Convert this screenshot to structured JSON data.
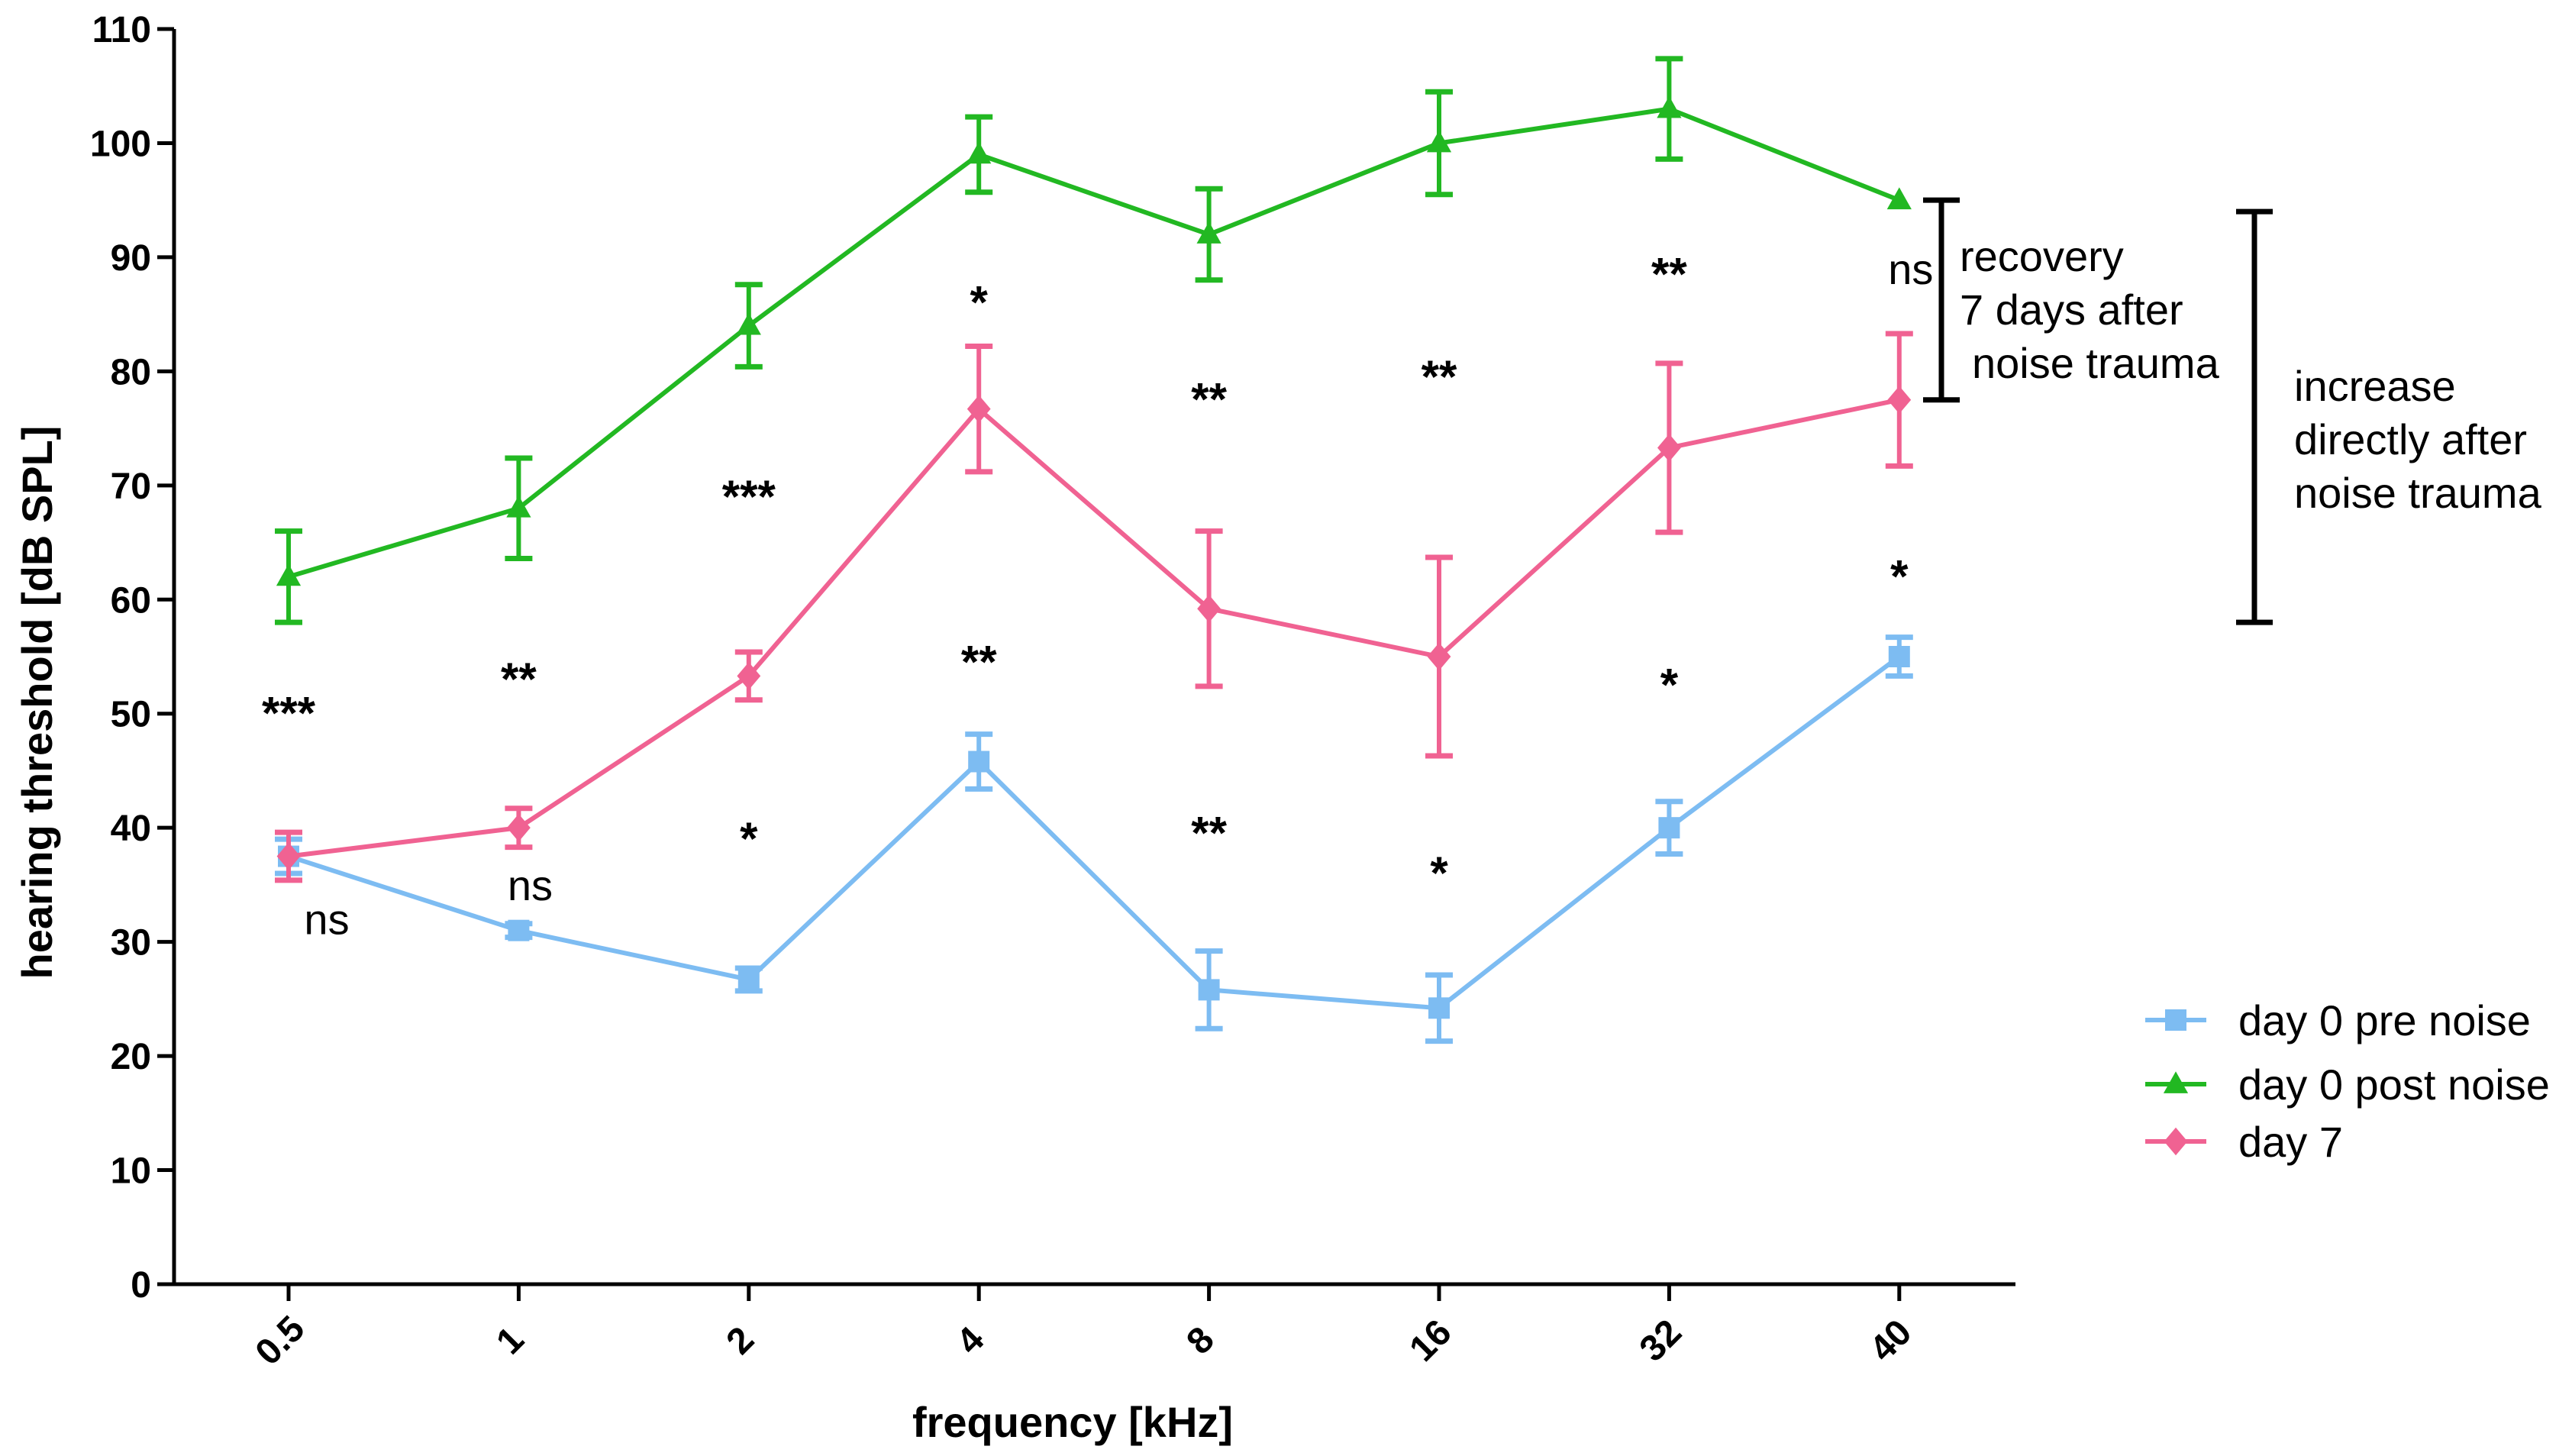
{
  "chart_data": {
    "type": "line",
    "title": "",
    "xlabel": "frequency [kHz]",
    "ylabel": "hearing threshold [dB SPL]",
    "ylim": [
      0,
      110
    ],
    "yticks": [
      0,
      10,
      20,
      30,
      40,
      50,
      60,
      70,
      80,
      90,
      100,
      110
    ],
    "categories": [
      "0.5",
      "1",
      "2",
      "4",
      "8",
      "16",
      "32",
      "40"
    ],
    "series": [
      {
        "name": "day 0 pre noise",
        "marker": "square",
        "color": "#7dbcf2",
        "values": [
          37.5,
          31,
          26.7,
          45.8,
          25.8,
          24.2,
          40,
          55
        ],
        "errors": [
          1.5,
          0.6,
          1.0,
          2.4,
          3.4,
          2.9,
          2.3,
          1.7
        ]
      },
      {
        "name": "day 0 post noise",
        "marker": "triangle",
        "color": "#22b822",
        "values": [
          62,
          68,
          84,
          99,
          92,
          100,
          103,
          95
        ],
        "errors": [
          4.0,
          4.4,
          3.6,
          3.3,
          4.0,
          4.5,
          4.4,
          0
        ]
      },
      {
        "name": "day 7",
        "marker": "diamond",
        "color": "#f06292",
        "values": [
          37.5,
          40,
          53.3,
          76.7,
          59.2,
          55,
          73.3,
          77.5
        ],
        "errors": [
          2.1,
          1.7,
          2.1,
          5.5,
          6.8,
          8.7,
          7.4,
          5.8
        ]
      }
    ],
    "significance": [
      {
        "category": "0.5",
        "y": 50,
        "text": "***"
      },
      {
        "category": "0.5",
        "y": 32,
        "text": "ns"
      },
      {
        "category": "1",
        "y": 53,
        "text": "**"
      },
      {
        "category": "1",
        "y": 35,
        "text": "ns"
      },
      {
        "category": "2",
        "y": 69,
        "text": "***"
      },
      {
        "category": "2",
        "y": 39,
        "text": "*"
      },
      {
        "category": "4",
        "y": 86,
        "text": "*"
      },
      {
        "category": "4",
        "y": 54.5,
        "text": "**"
      },
      {
        "category": "8",
        "y": 77.5,
        "text": "**"
      },
      {
        "category": "8",
        "y": 39.5,
        "text": "**"
      },
      {
        "category": "16",
        "y": 79.5,
        "text": "**"
      },
      {
        "category": "16",
        "y": 36,
        "text": "*"
      },
      {
        "category": "32",
        "y": 88.5,
        "text": "**"
      },
      {
        "category": "32",
        "y": 52.5,
        "text": "*"
      },
      {
        "category": "40",
        "y": 89,
        "text": "ns"
      },
      {
        "category": "40",
        "y": 62,
        "text": "*"
      }
    ],
    "brackets": [
      {
        "from": 77.5,
        "to": 95,
        "label": [
          "recovery",
          "7 days after",
          "noise trauma"
        ]
      },
      {
        "from": 58,
        "to": 94,
        "label": [
          "increase",
          "directly after",
          "noise trauma"
        ]
      }
    ],
    "legend_position": "bottom-right",
    "grid": false
  }
}
